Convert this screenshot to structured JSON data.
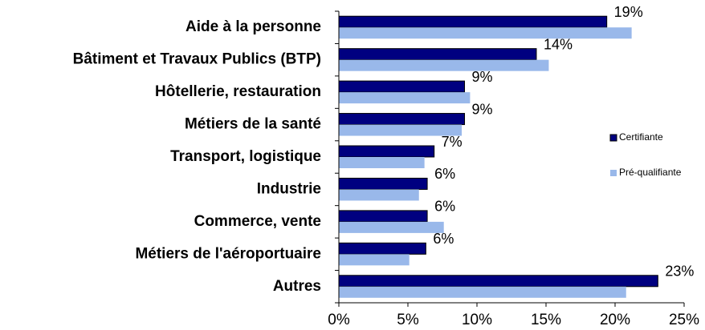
{
  "chart_data": {
    "type": "bar",
    "orientation": "horizontal",
    "categories": [
      "Aide à la personne",
      "Bâtiment et Travaux Publics (BTP)",
      "Hôtellerie, restauration",
      "Métiers de la santé",
      "Transport, logistique",
      "Industrie",
      "Commerce, vente",
      "Métiers de l'aéroportuaire",
      "Autres"
    ],
    "series": [
      {
        "name": "Certifiante",
        "color": "#000080",
        "values": [
          19.4,
          14.3,
          9.1,
          9.1,
          6.9,
          6.4,
          6.4,
          6.3,
          23.1
        ],
        "value_labels": [
          "19%",
          "14%",
          "9%",
          "9%",
          "7%",
          "6%",
          "6%",
          "6%",
          "23%"
        ]
      },
      {
        "name": "Pré-qualifiante",
        "color": "#99b8ea",
        "values": [
          21.2,
          15.2,
          9.5,
          8.9,
          6.2,
          5.8,
          7.6,
          5.1,
          20.8
        ]
      }
    ],
    "xlim": [
      0,
      25
    ],
    "xticks": [
      {
        "value": 0,
        "label": "0%"
      },
      {
        "value": 5,
        "label": "5%"
      },
      {
        "value": 10,
        "label": "10%"
      },
      {
        "value": 15,
        "label": "15%"
      },
      {
        "value": 20,
        "label": "20%"
      },
      {
        "value": 25,
        "label": "25%"
      }
    ],
    "legend": "right"
  }
}
